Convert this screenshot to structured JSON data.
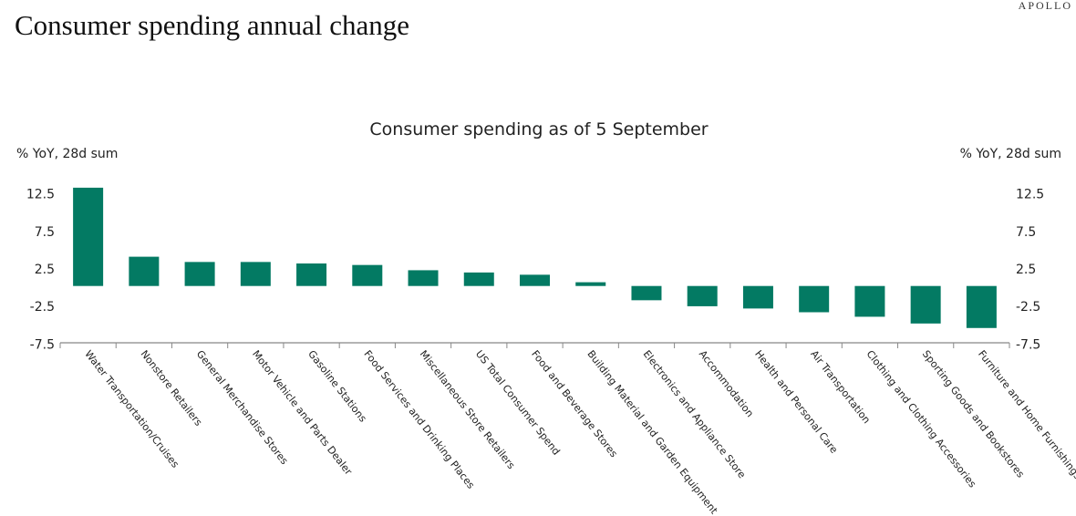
{
  "page": {
    "title": "Consumer spending annual change",
    "logo": "APOLLO"
  },
  "chart_data": {
    "type": "bar",
    "title": "Consumer spending as of 5 September",
    "ylabel_left": "% YoY, 28d sum",
    "ylabel_right": "% YoY, 28d sum",
    "ylim": [
      -7.5,
      12.5
    ],
    "yticks": [
      "12.5",
      "7.5",
      "2.5",
      "-2.5",
      "-7.5"
    ],
    "grid": false,
    "bar_color": "#037A63",
    "categories": [
      "Water Transportation/Cruises",
      "Nonstore Retailers",
      "General Merchandise Stores",
      "Motor Vehicle and Parts Dealer",
      "Gasoline Stations",
      "Food Services and Drinking Places",
      "Miscellaneous Store Retailers",
      "US Total Consumer Spend",
      "Food and Beverage Stores",
      "Building Material and Garden Equipment",
      "Electronics and Appliance Store",
      "Accommodation",
      "Health and Personal Care",
      "Air Transportation",
      "Clothing and Clothing Accessories",
      "Sporting Goods and Bookstores",
      "Furniture and Home Furnishings"
    ],
    "values": [
      13.1,
      3.9,
      3.2,
      3.2,
      3.0,
      2.8,
      2.1,
      1.8,
      1.5,
      0.5,
      -1.9,
      -2.7,
      -3.0,
      -3.5,
      -4.1,
      -5.0,
      -5.6
    ]
  }
}
